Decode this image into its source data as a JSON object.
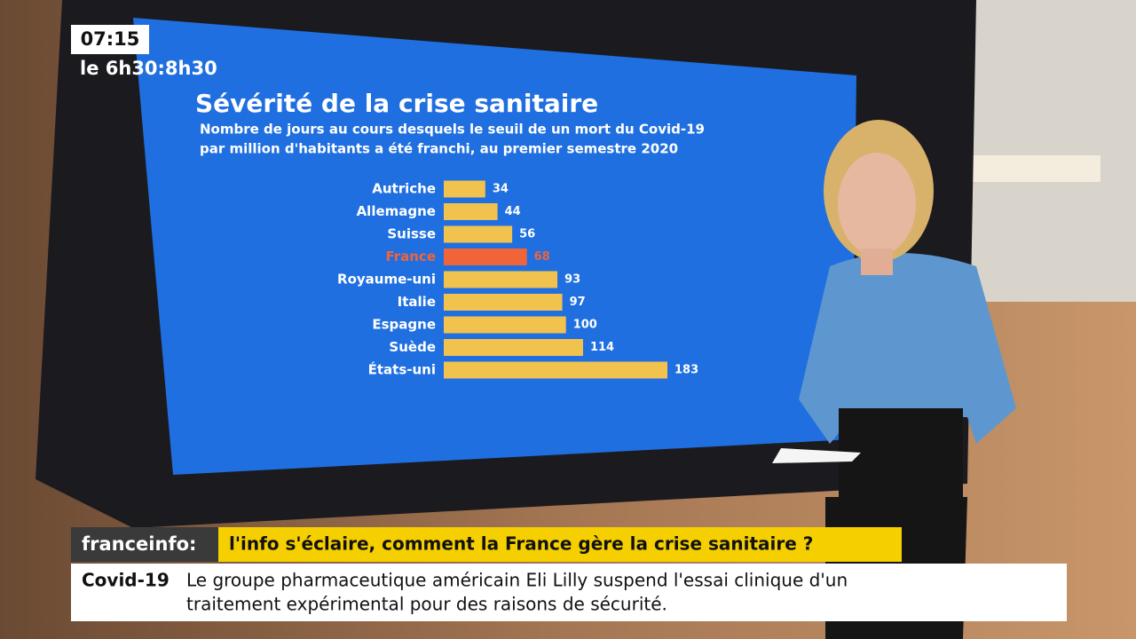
{
  "channel": {
    "clock": "07:15",
    "show": "le 6h30:8h30"
  },
  "chart_data": {
    "type": "bar",
    "orientation": "horizontal",
    "title": "Sévérité de la crise sanitaire",
    "subtitle": [
      "Nombre de jours au cours desquels le seuil de un mort du Covid-19",
      "par million d'habitants a été franchi, au premier semestre 2020"
    ],
    "categories": [
      "Autriche",
      "Allemagne",
      "Suisse",
      "France",
      "Royaume-uni",
      "Italie",
      "Espagne",
      "Suède",
      "États-uni"
    ],
    "values": [
      34,
      44,
      56,
      68,
      93,
      97,
      100,
      114,
      183
    ],
    "color": "#f2c24f",
    "colors": [
      "#f2c24f",
      "#f2c24f",
      "#f2c24f",
      "#f0643a",
      "#f2c24f",
      "#f2c24f",
      "#f2c24f",
      "#f2c24f",
      "#f2c24f"
    ]
  },
  "banner": {
    "brand": "franceinfo:",
    "headline": "l'info s'éclaire, comment la France gère la crise sanitaire ?"
  },
  "ticker": {
    "topic": "Covid-19",
    "text": [
      "Le groupe pharmaceutique américain Eli Lilly suspend l'essai clinique d'un",
      "traitement expérimental pour des raisons de sécurité."
    ]
  }
}
